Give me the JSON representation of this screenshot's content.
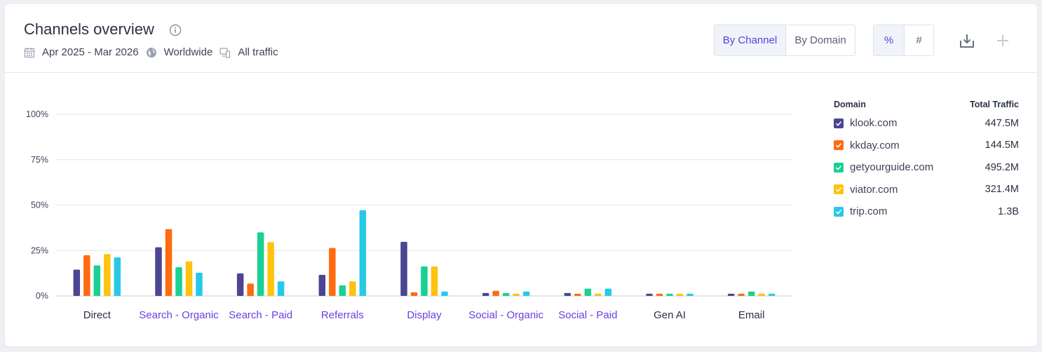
{
  "header": {
    "title": "Channels overview",
    "date_range": "Apr 2025 - Mar 2026",
    "region": "Worldwide",
    "traffic": "All traffic"
  },
  "view_toggle": {
    "by_channel": "By Channel",
    "by_domain": "By Domain",
    "active": "by_channel"
  },
  "unit_toggle": {
    "percent": "%",
    "number": "#",
    "active": "percent"
  },
  "legend": {
    "header_domain": "Domain",
    "header_traffic": "Total Traffic",
    "items": [
      {
        "name": "klook.com",
        "value": "447.5M",
        "color": "#4b4592"
      },
      {
        "name": "kkday.com",
        "value": "144.5M",
        "color": "#ff6b0f"
      },
      {
        "name": "getyourguide.com",
        "value": "495.2M",
        "color": "#19d192"
      },
      {
        "name": "viator.com",
        "value": "321.4M",
        "color": "#ffc20e"
      },
      {
        "name": "trip.com",
        "value": "1.3B",
        "color": "#28c9e8"
      }
    ]
  },
  "chart_data": {
    "type": "bar",
    "categories": [
      "Direct",
      "Search - Organic",
      "Search - Paid",
      "Referrals",
      "Display",
      "Social - Organic",
      "Social - Paid",
      "Gen AI",
      "Email"
    ],
    "category_links": [
      false,
      true,
      true,
      true,
      true,
      true,
      true,
      false,
      false
    ],
    "yticks": [
      "0%",
      "25%",
      "50%",
      "75%",
      "100%"
    ],
    "ylim": [
      0,
      100
    ],
    "grid": true,
    "legend_position": "right",
    "series": [
      {
        "name": "klook.com",
        "color": "#4b4592",
        "values": [
          14.5,
          26.8,
          12.4,
          11.6,
          29.8,
          1.6,
          1.6,
          1.2,
          1.2
        ]
      },
      {
        "name": "kkday.com",
        "color": "#ff6b0f",
        "values": [
          22.4,
          36.8,
          6.8,
          26.4,
          2.0,
          2.8,
          1.2,
          1.2,
          1.2
        ]
      },
      {
        "name": "getyourguide.com",
        "color": "#19d192",
        "values": [
          16.8,
          15.8,
          35.0,
          5.8,
          16.2,
          1.6,
          4.0,
          1.2,
          2.4
        ]
      },
      {
        "name": "viator.com",
        "color": "#ffc20e",
        "values": [
          23.0,
          19.0,
          29.6,
          8.0,
          16.2,
          1.2,
          1.2,
          1.2,
          1.2
        ]
      },
      {
        "name": "trip.com",
        "color": "#28c9e8",
        "values": [
          21.2,
          12.8,
          8.0,
          47.2,
          2.4,
          2.4,
          4.0,
          1.2,
          1.2
        ]
      }
    ]
  }
}
